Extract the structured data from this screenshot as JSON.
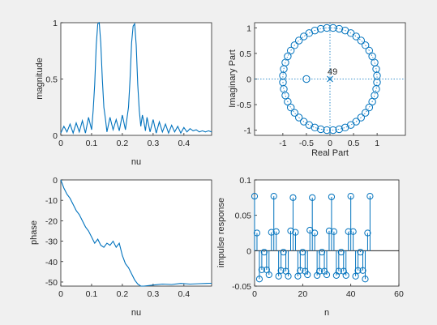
{
  "colors": {
    "series": "#0072bd",
    "axes": "#262626",
    "figure_bg": "#f0f0f0"
  },
  "chart_data": [
    {
      "type": "line",
      "panel": "magnitude-response",
      "title": "",
      "xlabel": "nu",
      "ylabel": "magnitude",
      "xlim": [
        0,
        0.49
      ],
      "ylim": [
        0,
        1
      ],
      "xticks": [
        "0",
        "0.1",
        "0.2",
        "0.3",
        "0.4"
      ],
      "yticks": [
        "0",
        "0.5",
        "1"
      ],
      "grid": false,
      "series": [
        {
          "x": [
            0,
            0.01,
            0.02,
            0.03,
            0.04,
            0.05,
            0.06,
            0.07,
            0.08,
            0.09,
            0.1,
            0.105,
            0.11,
            0.115,
            0.12,
            0.125,
            0.13,
            0.135,
            0.14,
            0.145,
            0.15,
            0.16,
            0.17,
            0.18,
            0.19,
            0.2,
            0.21,
            0.22,
            0.225,
            0.23,
            0.235,
            0.24,
            0.245,
            0.25,
            0.255,
            0.26,
            0.265,
            0.27,
            0.275,
            0.28,
            0.29,
            0.3,
            0.31,
            0.32,
            0.33,
            0.34,
            0.35,
            0.36,
            0.37,
            0.38,
            0.39,
            0.4,
            0.41,
            0.42,
            0.43,
            0.44,
            0.45,
            0.46,
            0.47,
            0.48,
            0.49
          ],
          "y": [
            0.02,
            0.08,
            0.03,
            0.1,
            0.02,
            0.11,
            0.03,
            0.13,
            0.02,
            0.16,
            0.05,
            0.22,
            0.45,
            0.8,
            0.99,
            1.0,
            0.82,
            0.5,
            0.25,
            0.15,
            0.03,
            0.16,
            0.05,
            0.14,
            0.04,
            0.18,
            0.05,
            0.25,
            0.5,
            0.82,
            0.97,
            0.99,
            0.8,
            0.45,
            0.22,
            0.08,
            0.18,
            0.12,
            0.04,
            0.16,
            0.03,
            0.14,
            0.02,
            0.12,
            0.03,
            0.1,
            0.02,
            0.09,
            0.03,
            0.08,
            0.02,
            0.07,
            0.03,
            0.06,
            0.04,
            0.05,
            0.03,
            0.04,
            0.03,
            0.04,
            0.03
          ]
        }
      ]
    },
    {
      "type": "scatter",
      "panel": "pole-zero",
      "title": "",
      "xlabel": "Real Part",
      "ylabel": "Imaginary Part",
      "xlim": [
        -1.6,
        1.6
      ],
      "ylim": [
        -1.1,
        1.1
      ],
      "xticks": [
        "-1",
        "-0.5",
        "0",
        "0.5",
        "1"
      ],
      "yticks": [
        "-1",
        "-0.5",
        "0",
        "0.5",
        "1"
      ],
      "grid": false,
      "zeros_on_unit_circle": 48,
      "extra_zero": [
        -0.5,
        0
      ],
      "pole": [
        0,
        0
      ],
      "annotation": "49"
    },
    {
      "type": "line",
      "panel": "phase-response",
      "title": "",
      "xlabel": "nu",
      "ylabel": "phase",
      "xlim": [
        0,
        0.49
      ],
      "ylim": [
        -52,
        0
      ],
      "xticks": [
        "0",
        "0.1",
        "0.2",
        "0.3",
        "0.4"
      ],
      "yticks": [
        "0",
        "-10",
        "-20",
        "-30",
        "-40",
        "-50"
      ],
      "grid": false,
      "series": [
        {
          "x": [
            0,
            0.01,
            0.02,
            0.03,
            0.04,
            0.05,
            0.06,
            0.07,
            0.08,
            0.09,
            0.1,
            0.11,
            0.12,
            0.13,
            0.14,
            0.15,
            0.16,
            0.17,
            0.18,
            0.19,
            0.2,
            0.21,
            0.22,
            0.23,
            0.24,
            0.25,
            0.26,
            0.27,
            0.3,
            0.33,
            0.36,
            0.39,
            0.42,
            0.45,
            0.49
          ],
          "y": [
            0,
            -4,
            -7,
            -9,
            -12,
            -15,
            -17,
            -20,
            -23,
            -25,
            -28,
            -31,
            -29,
            -32,
            -33,
            -31,
            -32,
            -30,
            -33,
            -31,
            -37,
            -41,
            -43,
            -46,
            -49,
            -51,
            -52,
            -52,
            -51.5,
            -51,
            -51.2,
            -50.7,
            -51,
            -50.8,
            -50.6
          ]
        }
      ]
    },
    {
      "type": "stem",
      "panel": "impulse-response",
      "title": "",
      "xlabel": "n",
      "ylabel": "impulse response",
      "xlim": [
        0,
        60
      ],
      "ylim": [
        -0.05,
        0.1
      ],
      "xticks": [
        "0",
        "20",
        "40",
        "60"
      ],
      "yticks": [
        "-0.05",
        "0",
        "0.05",
        "0.1"
      ],
      "grid": false,
      "series": [
        {
          "x": [
            0,
            1,
            2,
            3,
            4,
            5,
            6,
            7,
            8,
            9,
            10,
            11,
            12,
            13,
            14,
            15,
            16,
            17,
            18,
            19,
            20,
            21,
            22,
            23,
            24,
            25,
            26,
            27,
            28,
            29,
            30,
            31,
            32,
            33,
            34,
            35,
            36,
            37,
            38,
            39,
            40,
            41,
            42,
            43,
            44,
            45,
            46,
            47,
            48
          ],
          "y": [
            0.077,
            0.025,
            -0.04,
            -0.027,
            -0.002,
            -0.027,
            -0.034,
            0.026,
            0.077,
            0.027,
            -0.036,
            -0.028,
            -0.002,
            -0.029,
            -0.036,
            0.028,
            0.075,
            0.026,
            -0.036,
            -0.028,
            -0.002,
            -0.029,
            -0.034,
            0.029,
            0.075,
            0.025,
            -0.035,
            -0.029,
            -0.002,
            -0.029,
            -0.034,
            0.028,
            0.076,
            0.027,
            -0.035,
            -0.029,
            -0.002,
            -0.029,
            -0.035,
            0.027,
            0.077,
            0.027,
            -0.036,
            -0.028,
            -0.002,
            -0.028,
            -0.04,
            0.025,
            0.077
          ]
        }
      ]
    }
  ]
}
